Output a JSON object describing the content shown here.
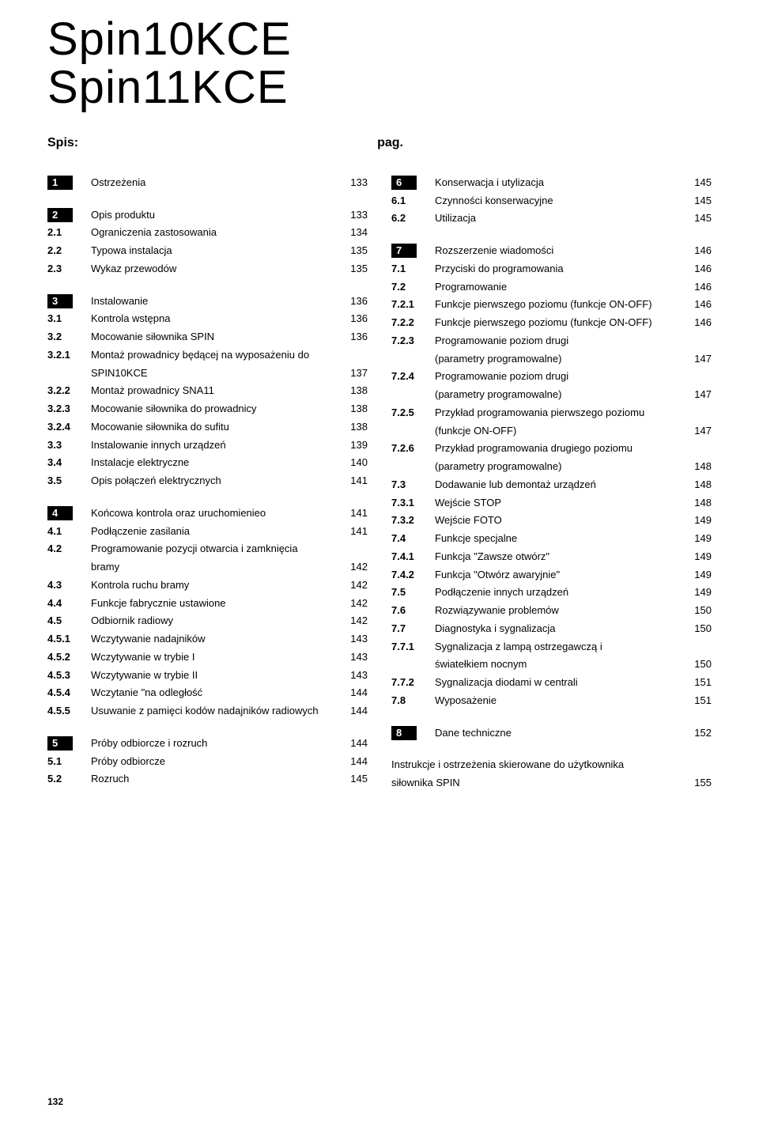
{
  "title_line1": "Spin10KCE",
  "title_line2": "Spin11KCE",
  "spis_label": "Spis:",
  "pag_label": "pag.",
  "page_number": "132",
  "left": [
    {
      "type": "section",
      "num": "1",
      "label": "Ostrzeżenia",
      "page": "133"
    },
    {
      "type": "spacer"
    },
    {
      "type": "section",
      "num": "2",
      "label": "Opis produktu",
      "page": "133"
    },
    {
      "type": "item",
      "num": "2.1",
      "label": "Ograniczenia zastosowania",
      "page": "134"
    },
    {
      "type": "item",
      "num": "2.2",
      "label": "Typowa instalacja",
      "page": "135"
    },
    {
      "type": "item",
      "num": "2.3",
      "label": "Wykaz przewodów",
      "page": "135"
    },
    {
      "type": "spacer"
    },
    {
      "type": "section",
      "num": "3",
      "label": "Instalowanie",
      "page": "136"
    },
    {
      "type": "item",
      "num": "3.1",
      "label": "Kontrola wstępna",
      "page": "136"
    },
    {
      "type": "item",
      "num": "3.2",
      "label": "Mocowanie siłownika SPIN",
      "page": "136"
    },
    {
      "type": "item",
      "num": "3.2.1",
      "label": "Montaż prowadnicy będącej na wyposażeniu do",
      "page": ""
    },
    {
      "type": "cont",
      "num": "",
      "label": "SPIN10KCE",
      "page": "137"
    },
    {
      "type": "item",
      "num": "3.2.2",
      "label": "Montaż prowadnicy SNA11",
      "page": "138"
    },
    {
      "type": "item",
      "num": "3.2.3",
      "label": "Mocowanie siłownika do prowadnicy",
      "page": "138"
    },
    {
      "type": "item",
      "num": "3.2.4",
      "label": "Mocowanie siłownika do sufitu",
      "page": "138"
    },
    {
      "type": "item",
      "num": "3.3",
      "label": "Instalowanie innych urządzeń",
      "page": "139"
    },
    {
      "type": "item",
      "num": "3.4",
      "label": "Instalacje elektryczne",
      "page": "140"
    },
    {
      "type": "item",
      "num": "3.5",
      "label": "Opis połączeń elektrycznych",
      "page": "141"
    },
    {
      "type": "spacer"
    },
    {
      "type": "section",
      "num": "4",
      "label": "Końcowa kontrola oraz uruchomienieo",
      "page": "141"
    },
    {
      "type": "item",
      "num": "4.1",
      "label": "Podłączenie zasilania",
      "page": "141"
    },
    {
      "type": "item",
      "num": "4.2",
      "label": "Programowanie pozycji otwarcia i zamknięcia",
      "page": ""
    },
    {
      "type": "cont",
      "num": "",
      "label": "bramy",
      "page": "142"
    },
    {
      "type": "item",
      "num": "4.3",
      "label": "Kontrola ruchu bramy",
      "page": "142"
    },
    {
      "type": "item",
      "num": "4.4",
      "label": "Funkcje fabrycznie ustawione",
      "page": "142"
    },
    {
      "type": "item",
      "num": "4.5",
      "label": "Odbiornik radiowy",
      "page": "142"
    },
    {
      "type": "item",
      "num": "4.5.1",
      "label": "Wczytywanie nadajników",
      "page": "143"
    },
    {
      "type": "item",
      "num": "4.5.2",
      "label": "Wczytywanie w trybie I",
      "page": "143"
    },
    {
      "type": "item",
      "num": "4.5.3",
      "label": "Wczytywanie w trybie II",
      "page": "143"
    },
    {
      "type": "item",
      "num": "4.5.4",
      "label": "Wczytanie \"na odległość",
      "page": "144"
    },
    {
      "type": "item",
      "num": "4.5.5",
      "label": "Usuwanie z pamięci kodów nadajników radiowych",
      "page": "144"
    },
    {
      "type": "spacer"
    },
    {
      "type": "section",
      "num": "5",
      "label": "Próby odbiorcze i rozruch",
      "page": "144"
    },
    {
      "type": "item",
      "num": "5.1",
      "label": "Próby odbiorcze",
      "page": "144"
    },
    {
      "type": "item",
      "num": "5.2",
      "label": "Rozruch",
      "page": "145"
    }
  ],
  "right": [
    {
      "type": "section",
      "num": "6",
      "label": "Konserwacja i utylizacja",
      "page": "145"
    },
    {
      "type": "item",
      "num": "6.1",
      "label": "Czynności konserwacyjne",
      "page": "145"
    },
    {
      "type": "item",
      "num": "6.2",
      "label": "Utilizacja",
      "page": "145"
    },
    {
      "type": "spacer"
    },
    {
      "type": "section",
      "num": "7",
      "label": "Rozszerzenie wiadomości",
      "page": "146"
    },
    {
      "type": "item",
      "num": "7.1",
      "label": "Przyciski do programowania",
      "page": "146"
    },
    {
      "type": "item",
      "num": "7.2",
      "label": "Programowanie",
      "page": "146"
    },
    {
      "type": "item",
      "num": "7.2.1",
      "label": "Funkcje pierwszego poziomu (funkcje ON-OFF)",
      "page": "146"
    },
    {
      "type": "item",
      "num": "7.2.2",
      "label": "Funkcje pierwszego poziomu (funkcje ON-OFF)",
      "page": "146"
    },
    {
      "type": "item",
      "num": "7.2.3",
      "label": "Programowanie poziom drugi",
      "page": ""
    },
    {
      "type": "cont",
      "num": "",
      "label": "(parametry programowalne)",
      "page": "147"
    },
    {
      "type": "item",
      "num": "7.2.4",
      "label": "Programowanie poziom drugi",
      "page": ""
    },
    {
      "type": "cont",
      "num": "",
      "label": "(parametry programowalne)",
      "page": "147"
    },
    {
      "type": "item",
      "num": "7.2.5",
      "label": "Przykład programowania pierwszego poziomu",
      "page": ""
    },
    {
      "type": "cont",
      "num": "",
      "label": "(funkcje ON-OFF)",
      "page": "147"
    },
    {
      "type": "item",
      "num": "7.2.6",
      "label": "Przykład programowania drugiego poziomu",
      "page": ""
    },
    {
      "type": "cont",
      "num": "",
      "label": "(parametry programowalne)",
      "page": "148"
    },
    {
      "type": "item",
      "num": "7.3",
      "label": "Dodawanie lub demontaż urządzeń",
      "page": "148"
    },
    {
      "type": "item",
      "num": "7.3.1",
      "label": "Wejście STOP",
      "page": "148"
    },
    {
      "type": "item",
      "num": "7.3.2",
      "label": "Wejście FOTO",
      "page": "149"
    },
    {
      "type": "item",
      "num": "7.4",
      "label": "Funkcje specjalne",
      "page": "149"
    },
    {
      "type": "item",
      "num": "7.4.1",
      "label": "Funkcja \"Zawsze otwórz\"",
      "page": "149"
    },
    {
      "type": "item",
      "num": "7.4.2",
      "label": "Funkcja \"Otwórz awaryjnie\"",
      "page": "149"
    },
    {
      "type": "item",
      "num": "7.5",
      "label": "Podłączenie innych urządzeń",
      "page": "149"
    },
    {
      "type": "item",
      "num": "7.6",
      "label": "Rozwiązywanie problemów",
      "page": "150"
    },
    {
      "type": "item",
      "num": "7.7",
      "label": "Diagnostyka i sygnalizacja",
      "page": "150"
    },
    {
      "type": "item",
      "num": "7.7.1",
      "label": "Sygnalizacja z lampą ostrzegawczą i",
      "page": ""
    },
    {
      "type": "cont",
      "num": "",
      "label": "światełkiem nocnym",
      "page": "150"
    },
    {
      "type": "item",
      "num": "7.7.2",
      "label": "Sygnalizacja diodami w centrali",
      "page": "151"
    },
    {
      "type": "item",
      "num": "7.8",
      "label": "Wyposażenie",
      "page": "151"
    },
    {
      "type": "spacer"
    },
    {
      "type": "section",
      "num": "8",
      "label": "Dane techniczne",
      "page": "152"
    },
    {
      "type": "spacer"
    },
    {
      "type": "plain",
      "label": "Instrukcje i ostrzeżenia skierowane do użytkownika",
      "page": ""
    },
    {
      "type": "plain",
      "label": "siłownika SPIN",
      "page": "155"
    }
  ]
}
